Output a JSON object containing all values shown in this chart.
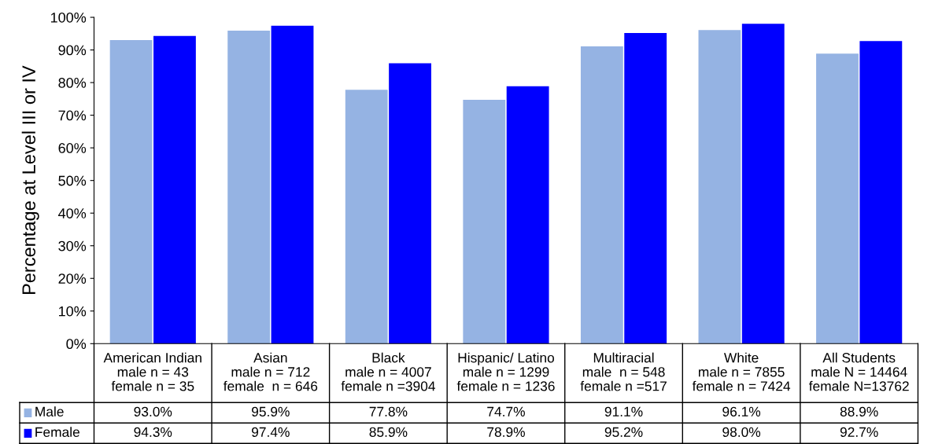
{
  "chart_data": {
    "type": "bar",
    "ylabel": "Percentage at Level III or IV",
    "categories": [
      "American Indian\nmale n = 43\nfemale n = 35",
      "Asian\nmale n = 712\nfemale  n = 646",
      "Black\nmale n = 4007\nfemale n =3904",
      "Hispanic/ Latino\nmale n = 1299\nfemale n = 1236",
      "Multiracial\nmale  n = 548\nfemale n =517",
      "White\nmale n = 7855\nfemale n = 7424",
      "All Students\nmale N = 14464\nfemale N=13762"
    ],
    "series": [
      {
        "name": "Male",
        "color": "#95b3e3",
        "values": [
          93.0,
          95.9,
          77.8,
          74.7,
          91.1,
          96.1,
          88.9
        ],
        "value_labels": [
          "93.0%",
          "95.9%",
          "77.8%",
          "74.7%",
          "91.1%",
          "96.1%",
          "88.9%"
        ]
      },
      {
        "name": "Female",
        "color": "#0000ff",
        "values": [
          94.3,
          97.4,
          85.9,
          78.9,
          95.2,
          98.0,
          92.7
        ],
        "value_labels": [
          "94.3%",
          "97.4%",
          "85.9%",
          "78.9%",
          "95.2%",
          "98.0%",
          "92.7%"
        ]
      }
    ],
    "ylim": [
      0,
      100
    ],
    "yticks": [
      {
        "value": 0,
        "label": "0%"
      },
      {
        "value": 10,
        "label": "10%"
      },
      {
        "value": 20,
        "label": "20%"
      },
      {
        "value": 30,
        "label": "30%"
      },
      {
        "value": 40,
        "label": "40%"
      },
      {
        "value": 50,
        "label": "50%"
      },
      {
        "value": 60,
        "label": "60%"
      },
      {
        "value": 70,
        "label": "70%"
      },
      {
        "value": 80,
        "label": "80%"
      },
      {
        "value": 90,
        "label": "90%"
      },
      {
        "value": 100,
        "label": "100%"
      }
    ],
    "grid": false,
    "legend": "bottom"
  }
}
